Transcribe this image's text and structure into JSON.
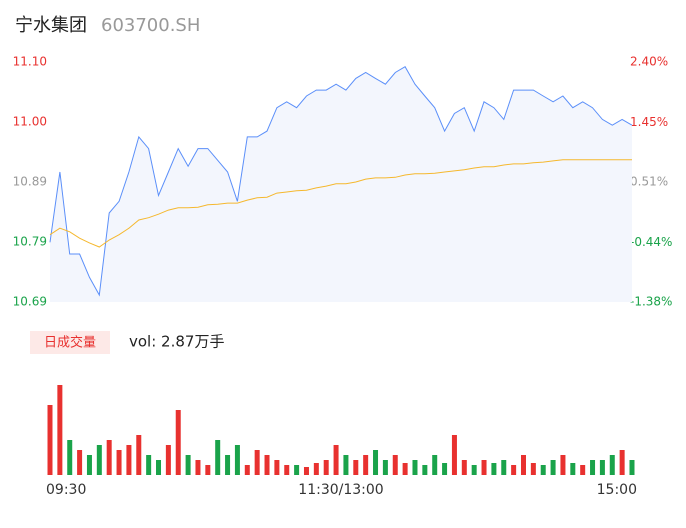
{
  "chart_data": [
    {
      "type": "line",
      "title": "宁水集团",
      "subtitle": "603700.SH",
      "xlim": [
        0,
        59
      ],
      "ylim": [
        10.688,
        11.098
      ],
      "yticks": [
        {
          "value": 10.688,
          "label": "10.69"
        },
        {
          "value": 10.7905,
          "label": "10.79"
        },
        {
          "value": 10.893,
          "label": "10.89"
        },
        {
          "value": 10.9955,
          "label": "11.00"
        },
        {
          "value": 11.098,
          "label": "11.10"
        }
      ],
      "ytick_colors": [
        "#1aa34a",
        "#1aa34a",
        "#999999",
        "#e8312f",
        "#e8312f"
      ],
      "y2lim": [
        -1.38,
        2.4
      ],
      "y2ticks": [
        {
          "value": -1.38,
          "label": "-1.38%"
        },
        {
          "value": -0.44,
          "label": "-0.44%"
        },
        {
          "value": 0.51,
          "label": "0.51%"
        },
        {
          "value": 1.45,
          "label": "1.45%"
        },
        {
          "value": 2.4,
          "label": "2.40%"
        }
      ],
      "area_color": "#f3f6fd",
      "series": [
        {
          "color": "#5b8ff9",
          "values": [
            10.79,
            10.91,
            10.77,
            10.77,
            10.73,
            10.7,
            10.84,
            10.86,
            10.91,
            10.97,
            10.95,
            10.87,
            10.91,
            10.95,
            10.92,
            10.95,
            10.95,
            10.93,
            10.91,
            10.86,
            10.97,
            10.97,
            10.98,
            11.02,
            11.03,
            11.02,
            11.04,
            11.05,
            11.05,
            11.06,
            11.05,
            11.07,
            11.08,
            11.07,
            11.06,
            11.08,
            11.09,
            11.06,
            11.04,
            11.02,
            10.98,
            11.01,
            11.02,
            10.98,
            11.03,
            11.02,
            11.0,
            11.05,
            11.05,
            11.05,
            11.04,
            11.03,
            11.04,
            11.02,
            11.03,
            11.02,
            11.0,
            10.99,
            11.0,
            10.99
          ]
        },
        {
          "color": "#f5b82e",
          "values": [
            10.803,
            10.814,
            10.808,
            10.797,
            10.789,
            10.782,
            10.794,
            10.803,
            10.814,
            10.828,
            10.832,
            10.838,
            10.845,
            10.849,
            10.849,
            10.85,
            10.854,
            10.855,
            10.857,
            10.857,
            10.862,
            10.866,
            10.867,
            10.874,
            10.876,
            10.878,
            10.879,
            10.883,
            10.886,
            10.89,
            10.89,
            10.893,
            10.898,
            10.9,
            10.9,
            10.901,
            10.905,
            10.907,
            10.907,
            10.908,
            10.91,
            10.912,
            10.914,
            10.917,
            10.919,
            10.919,
            10.922,
            10.924,
            10.924,
            10.926,
            10.927,
            10.929,
            10.931,
            10.931,
            10.931,
            10.931,
            10.931,
            10.931,
            10.931,
            10.931
          ]
        }
      ]
    },
    {
      "type": "bar",
      "legend_label": "日成交量",
      "summary": "vol: 2.87万手",
      "xlim": [
        0,
        59
      ],
      "xticks": [
        {
          "value": 0,
          "label": "09:30"
        },
        {
          "value": 29.5,
          "label": "11:30/13:00"
        },
        {
          "value": 59,
          "label": "15:00"
        }
      ],
      "up_color": "#e8312f",
      "down_color": "#1aa34a",
      "values": [
        1400,
        1800,
        700,
        500,
        400,
        600,
        700,
        500,
        600,
        800,
        400,
        300,
        600,
        1300,
        400,
        300,
        200,
        700,
        400,
        600,
        200,
        500,
        400,
        300,
        200,
        200,
        160,
        240,
        300,
        600,
        400,
        300,
        400,
        500,
        300,
        400,
        240,
        300,
        200,
        400,
        240,
        800,
        300,
        200,
        300,
        240,
        300,
        200,
        400,
        240,
        200,
        300,
        400,
        240,
        200,
        300,
        300,
        400,
        500,
        300
      ]
    }
  ]
}
